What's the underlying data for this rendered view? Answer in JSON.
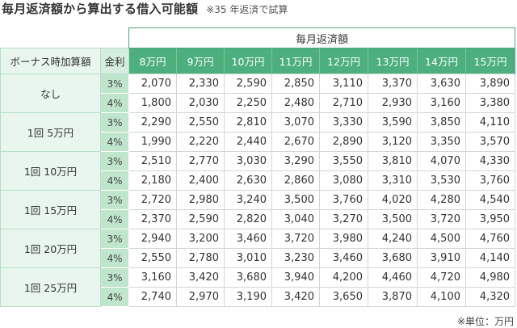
{
  "title": "毎月返済額から算出する借入可能額",
  "note": "※35 年返済で試算",
  "table": {
    "group_header": "毎月返済額",
    "bonus_header": "ボーナス時加算額",
    "rate_header": "金利",
    "columns": [
      "8万円",
      "9万円",
      "10万円",
      "11万円",
      "12万円",
      "13万円",
      "14万円",
      "15万円"
    ],
    "groups": [
      {
        "label": "なし",
        "rows": [
          {
            "rate": "3%",
            "values": [
              "2,070",
              "2,330",
              "2,590",
              "2,850",
              "3,110",
              "3,370",
              "3,630",
              "3,890"
            ]
          },
          {
            "rate": "4%",
            "values": [
              "1,800",
              "2,030",
              "2,250",
              "2,480",
              "2,710",
              "2,930",
              "3,160",
              "3,380"
            ]
          }
        ]
      },
      {
        "label": "1回 5万円",
        "rows": [
          {
            "rate": "3%",
            "values": [
              "2,290",
              "2,550",
              "2,810",
              "3,070",
              "3,330",
              "3,590",
              "3,850",
              "4,110"
            ]
          },
          {
            "rate": "4%",
            "values": [
              "1,990",
              "2,220",
              "2,440",
              "2,670",
              "2,890",
              "3,120",
              "3,350",
              "3,570"
            ]
          }
        ]
      },
      {
        "label": "1回 10万円",
        "rows": [
          {
            "rate": "3%",
            "values": [
              "2,510",
              "2,770",
              "3,030",
              "3,290",
              "3,550",
              "3,810",
              "4,070",
              "4,330"
            ]
          },
          {
            "rate": "4%",
            "values": [
              "2,180",
              "2,400",
              "2,630",
              "2,860",
              "3,080",
              "3,310",
              "3,530",
              "3,760"
            ]
          }
        ]
      },
      {
        "label": "1回 15万円",
        "rows": [
          {
            "rate": "3%",
            "values": [
              "2,720",
              "2,980",
              "3,240",
              "3,500",
              "3,760",
              "4,020",
              "4,280",
              "4,540"
            ]
          },
          {
            "rate": "4%",
            "values": [
              "2,370",
              "2,590",
              "2,820",
              "3,040",
              "3,270",
              "3,500",
              "3,720",
              "3,950"
            ]
          }
        ]
      },
      {
        "label": "1回 20万円",
        "rows": [
          {
            "rate": "3%",
            "values": [
              "2,940",
              "3,200",
              "3,460",
              "3,720",
              "3,980",
              "4,240",
              "4,500",
              "4,760"
            ]
          },
          {
            "rate": "4%",
            "values": [
              "2,550",
              "2,780",
              "3,010",
              "3,230",
              "3,460",
              "3,680",
              "3,910",
              "4,140"
            ]
          }
        ]
      },
      {
        "label": "1回 25万円",
        "rows": [
          {
            "rate": "3%",
            "values": [
              "3,160",
              "3,420",
              "3,680",
              "3,940",
              "4,200",
              "4,460",
              "4,720",
              "4,980"
            ]
          },
          {
            "rate": "4%",
            "values": [
              "2,740",
              "2,970",
              "3,190",
              "3,420",
              "3,650",
              "3,870",
              "4,100",
              "4,320"
            ]
          }
        ]
      }
    ]
  },
  "unit_note": "※単位：万円",
  "colors": {
    "header_green": "#4caf7d",
    "rate_green": "#bfe5cd",
    "label_green": "#e9f6ee"
  }
}
